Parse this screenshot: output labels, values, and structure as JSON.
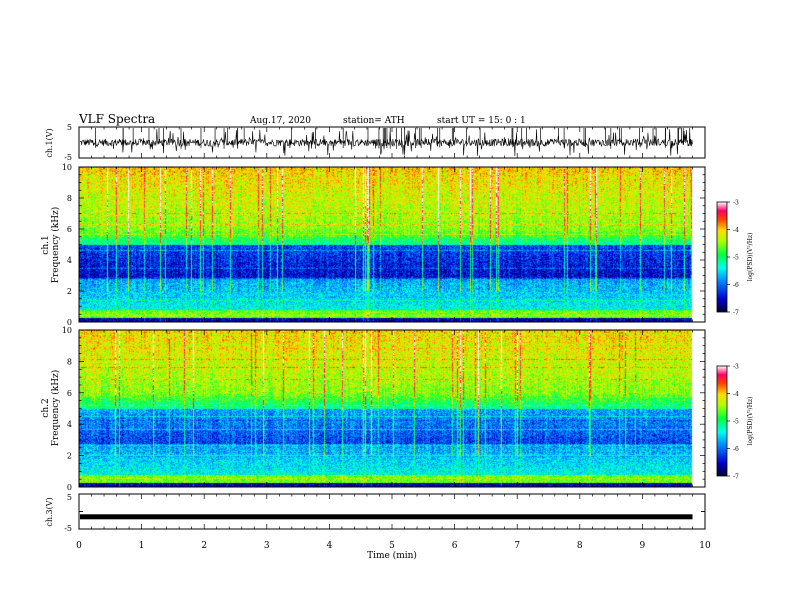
{
  "header": {
    "title": "VLF Spectra",
    "date": "Aug.17, 2020",
    "station": "station= ATH",
    "start": "start  UT =   15: 0  : 1"
  },
  "chart_data": [
    {
      "type": "line",
      "ylabel": "ch.1(V)",
      "ylim": [
        -5,
        5
      ],
      "y_ticks": [
        "5",
        "-5"
      ],
      "xlim": [
        0,
        10
      ]
    },
    {
      "type": "heatmap",
      "ylabel_1": "ch.1",
      "ylabel_2": "Frequency (kHz)",
      "ylim": [
        0,
        10
      ],
      "y_ticks": [
        "0",
        "2",
        "4",
        "6",
        "8",
        "10"
      ],
      "xlim": [
        0,
        10
      ],
      "x_extent_min": 9.8
    },
    {
      "type": "heatmap",
      "ylabel_1": "ch.2",
      "ylabel_2": "Frequency (kHz)",
      "ylim": [
        0,
        10
      ],
      "y_ticks": [
        "0",
        "2",
        "4",
        "6",
        "8",
        "10"
      ],
      "xlim": [
        0,
        10
      ],
      "x_extent_min": 9.8
    },
    {
      "type": "line",
      "ylabel": "ch.3(V)",
      "ylim": [
        -5,
        5
      ],
      "y_ticks": [
        "5",
        "-5"
      ],
      "xlim": [
        0,
        10
      ],
      "constant_value": -1.5
    }
  ],
  "x_axis": {
    "label": "Time (min)",
    "ticks": [
      "0",
      "1",
      "2",
      "3",
      "4",
      "5",
      "6",
      "7",
      "8",
      "9",
      "10"
    ]
  },
  "colorbar": {
    "label": "log(PSD)(V²/Hz)",
    "range": [
      -7,
      -3
    ],
    "ticks": [
      "-3",
      "-4",
      "-5",
      "-6",
      "-7"
    ],
    "colors": [
      "#000066",
      "#0000ff",
      "#00aaff",
      "#00ffff",
      "#00ff66",
      "#66ff00",
      "#ffff00",
      "#ff8800",
      "#ff0000",
      "#ffffff"
    ]
  }
}
